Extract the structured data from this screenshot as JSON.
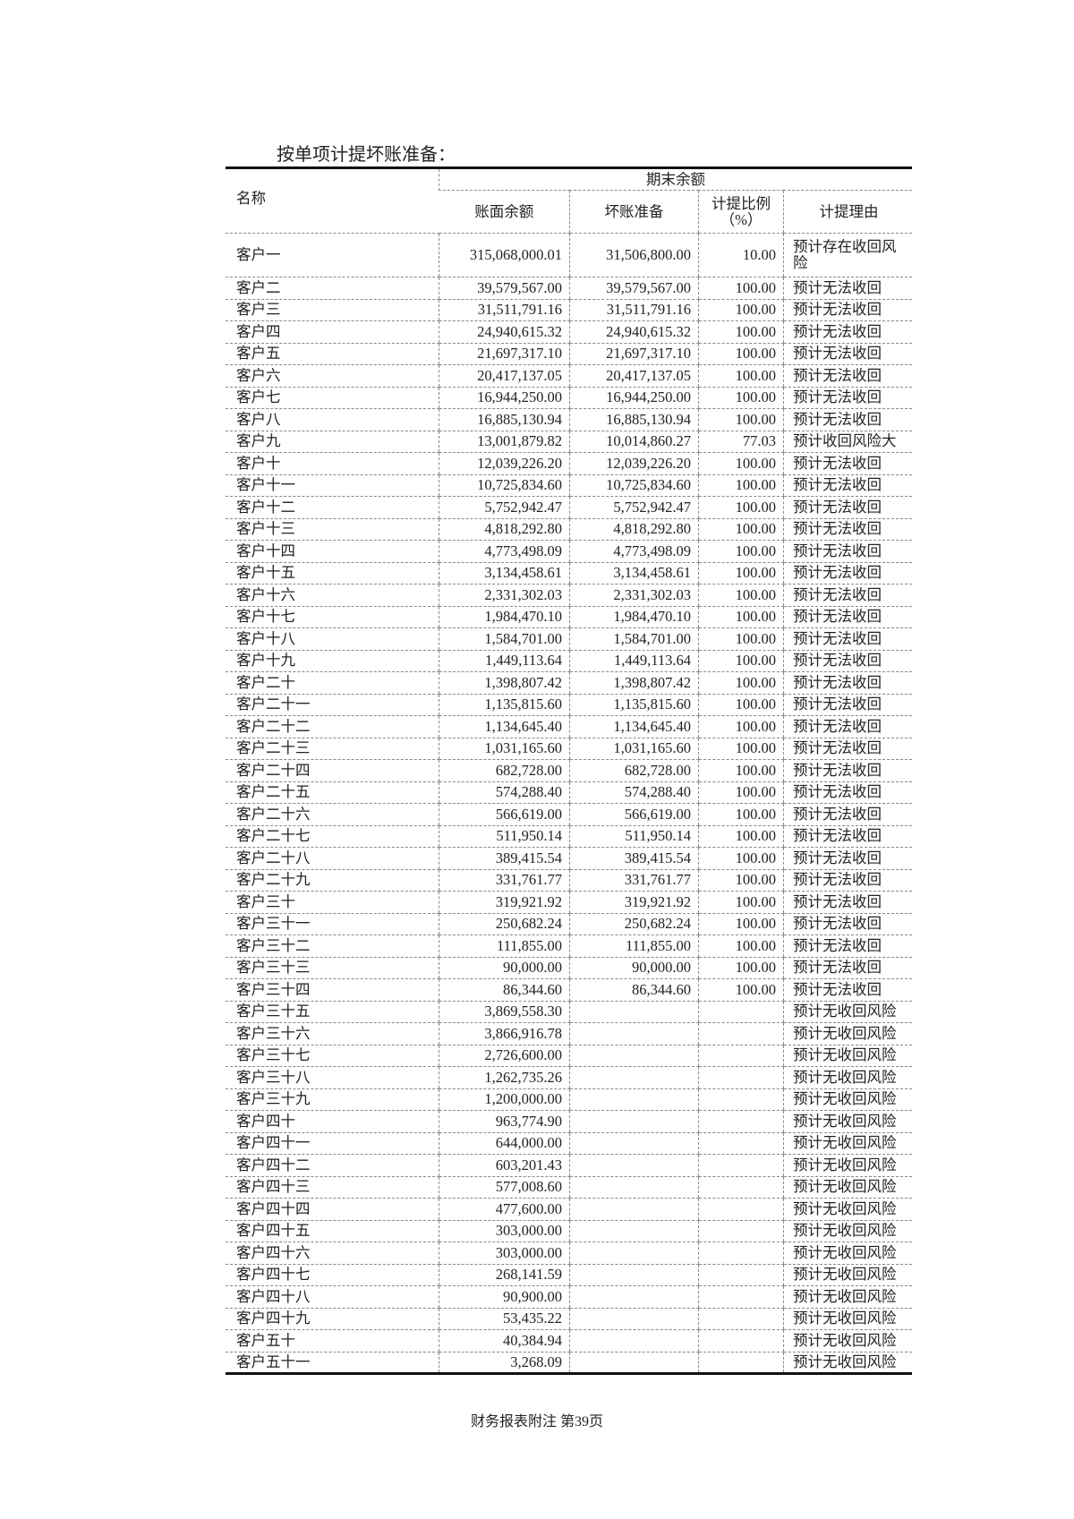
{
  "title": "按单项计提坏账准备：",
  "headers": {
    "name": "名称",
    "group": "期末余额",
    "book_balance": "账面余额",
    "bad_debt": "坏账准备",
    "ratio": "计提比例（%）",
    "reason": "计提理由"
  },
  "rows": [
    [
      "客户一",
      "315,068,000.01",
      "31,506,800.00",
      "10.00",
      "预计存在收回风险"
    ],
    [
      "客户二",
      "39,579,567.00",
      "39,579,567.00",
      "100.00",
      "预计无法收回"
    ],
    [
      "客户三",
      "31,511,791.16",
      "31,511,791.16",
      "100.00",
      "预计无法收回"
    ],
    [
      "客户四",
      "24,940,615.32",
      "24,940,615.32",
      "100.00",
      "预计无法收回"
    ],
    [
      "客户五",
      "21,697,317.10",
      "21,697,317.10",
      "100.00",
      "预计无法收回"
    ],
    [
      "客户六",
      "20,417,137.05",
      "20,417,137.05",
      "100.00",
      "预计无法收回"
    ],
    [
      "客户七",
      "16,944,250.00",
      "16,944,250.00",
      "100.00",
      "预计无法收回"
    ],
    [
      "客户八",
      "16,885,130.94",
      "16,885,130.94",
      "100.00",
      "预计无法收回"
    ],
    [
      "客户九",
      "13,001,879.82",
      "10,014,860.27",
      "77.03",
      "预计收回风险大"
    ],
    [
      "客户十",
      "12,039,226.20",
      "12,039,226.20",
      "100.00",
      "预计无法收回"
    ],
    [
      "客户十一",
      "10,725,834.60",
      "10,725,834.60",
      "100.00",
      "预计无法收回"
    ],
    [
      "客户十二",
      "5,752,942.47",
      "5,752,942.47",
      "100.00",
      "预计无法收回"
    ],
    [
      "客户十三",
      "4,818,292.80",
      "4,818,292.80",
      "100.00",
      "预计无法收回"
    ],
    [
      "客户十四",
      "4,773,498.09",
      "4,773,498.09",
      "100.00",
      "预计无法收回"
    ],
    [
      "客户十五",
      "3,134,458.61",
      "3,134,458.61",
      "100.00",
      "预计无法收回"
    ],
    [
      "客户十六",
      "2,331,302.03",
      "2,331,302.03",
      "100.00",
      "预计无法收回"
    ],
    [
      "客户十七",
      "1,984,470.10",
      "1,984,470.10",
      "100.00",
      "预计无法收回"
    ],
    [
      "客户十八",
      "1,584,701.00",
      "1,584,701.00",
      "100.00",
      "预计无法收回"
    ],
    [
      "客户十九",
      "1,449,113.64",
      "1,449,113.64",
      "100.00",
      "预计无法收回"
    ],
    [
      "客户二十",
      "1,398,807.42",
      "1,398,807.42",
      "100.00",
      "预计无法收回"
    ],
    [
      "客户二十一",
      "1,135,815.60",
      "1,135,815.60",
      "100.00",
      "预计无法收回"
    ],
    [
      "客户二十二",
      "1,134,645.40",
      "1,134,645.40",
      "100.00",
      "预计无法收回"
    ],
    [
      "客户二十三",
      "1,031,165.60",
      "1,031,165.60",
      "100.00",
      "预计无法收回"
    ],
    [
      "客户二十四",
      "682,728.00",
      "682,728.00",
      "100.00",
      "预计无法收回"
    ],
    [
      "客户二十五",
      "574,288.40",
      "574,288.40",
      "100.00",
      "预计无法收回"
    ],
    [
      "客户二十六",
      "566,619.00",
      "566,619.00",
      "100.00",
      "预计无法收回"
    ],
    [
      "客户二十七",
      "511,950.14",
      "511,950.14",
      "100.00",
      "预计无法收回"
    ],
    [
      "客户二十八",
      "389,415.54",
      "389,415.54",
      "100.00",
      "预计无法收回"
    ],
    [
      "客户二十九",
      "331,761.77",
      "331,761.77",
      "100.00",
      "预计无法收回"
    ],
    [
      "客户三十",
      "319,921.92",
      "319,921.92",
      "100.00",
      "预计无法收回"
    ],
    [
      "客户三十一",
      "250,682.24",
      "250,682.24",
      "100.00",
      "预计无法收回"
    ],
    [
      "客户三十二",
      "111,855.00",
      "111,855.00",
      "100.00",
      "预计无法收回"
    ],
    [
      "客户三十三",
      "90,000.00",
      "90,000.00",
      "100.00",
      "预计无法收回"
    ],
    [
      "客户三十四",
      "86,344.60",
      "86,344.60",
      "100.00",
      "预计无法收回"
    ],
    [
      "客户三十五",
      "3,869,558.30",
      "",
      "",
      "预计无收回风险"
    ],
    [
      "客户三十六",
      "3,866,916.78",
      "",
      "",
      "预计无收回风险"
    ],
    [
      "客户三十七",
      "2,726,600.00",
      "",
      "",
      "预计无收回风险"
    ],
    [
      "客户三十八",
      "1,262,735.26",
      "",
      "",
      "预计无收回风险"
    ],
    [
      "客户三十九",
      "1,200,000.00",
      "",
      "",
      "预计无收回风险"
    ],
    [
      "客户四十",
      "963,774.90",
      "",
      "",
      "预计无收回风险"
    ],
    [
      "客户四十一",
      "644,000.00",
      "",
      "",
      "预计无收回风险"
    ],
    [
      "客户四十二",
      "603,201.43",
      "",
      "",
      "预计无收回风险"
    ],
    [
      "客户四十三",
      "577,008.60",
      "",
      "",
      "预计无收回风险"
    ],
    [
      "客户四十四",
      "477,600.00",
      "",
      "",
      "预计无收回风险"
    ],
    [
      "客户四十五",
      "303,000.00",
      "",
      "",
      "预计无收回风险"
    ],
    [
      "客户四十六",
      "303,000.00",
      "",
      "",
      "预计无收回风险"
    ],
    [
      "客户四十七",
      "268,141.59",
      "",
      "",
      "预计无收回风险"
    ],
    [
      "客户四十八",
      "90,900.00",
      "",
      "",
      "预计无收回风险"
    ],
    [
      "客户四十九",
      "53,435.22",
      "",
      "",
      "预计无收回风险"
    ],
    [
      "客户五十",
      "40,384.94",
      "",
      "",
      "预计无收回风险"
    ],
    [
      "客户五十一",
      "3,268.09",
      "",
      "",
      "预计无收回风险"
    ]
  ],
  "footer": "财务报表附注  第39页"
}
